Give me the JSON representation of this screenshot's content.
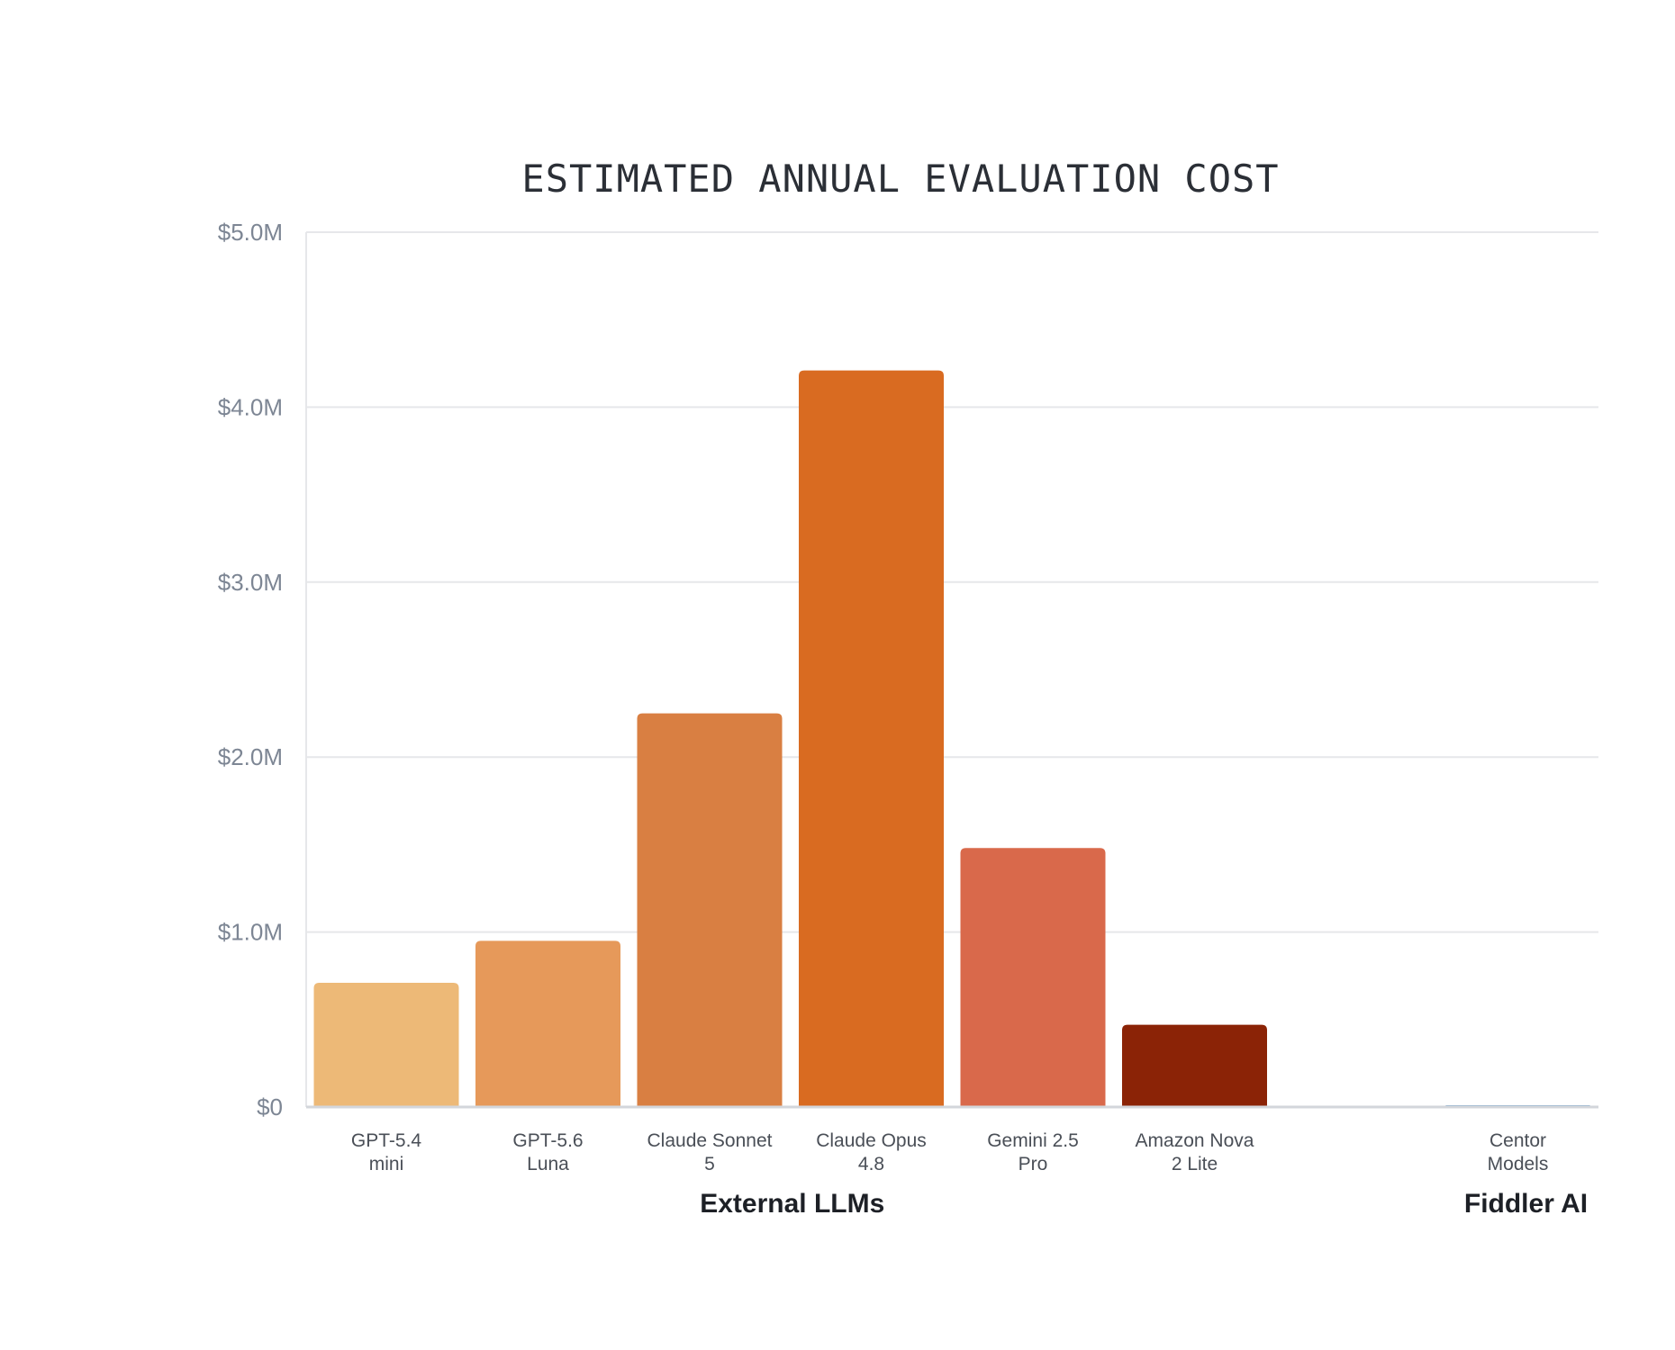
{
  "chart_data": {
    "type": "bar",
    "title": "ESTIMATED ANNUAL EVALUATION COST",
    "xlabel": "",
    "ylabel": "",
    "ylim": [
      0,
      5.0
    ],
    "y_unit": "M",
    "y_ticks": [
      {
        "value": 0,
        "label": "$0"
      },
      {
        "value": 1.0,
        "label": "$1.0M"
      },
      {
        "value": 2.0,
        "label": "$2.0M"
      },
      {
        "value": 3.0,
        "label": "$3.0M"
      },
      {
        "value": 4.0,
        "label": "$4.0M"
      },
      {
        "value": 5.0,
        "label": "$5.0M"
      }
    ],
    "grid": true,
    "categories": [
      "GPT-5.4 mini",
      "GPT-5.6 Luna",
      "Claude Sonnet 5",
      "Claude Opus 4.8",
      "Gemini 2.5 Pro",
      "Amazon Nova 2 Lite",
      "Centor Models"
    ],
    "category_lines": [
      [
        "GPT-5.4",
        "mini"
      ],
      [
        "GPT-5.6",
        "Luna"
      ],
      [
        "Claude Sonnet",
        "5"
      ],
      [
        "Claude Opus",
        "4.8"
      ],
      [
        "Gemini 2.5",
        "Pro"
      ],
      [
        "Amazon Nova",
        "2 Lite"
      ],
      [
        "Centor",
        "Models"
      ]
    ],
    "values": [
      0.71,
      0.95,
      2.25,
      4.21,
      1.48,
      0.47,
      0.01
    ],
    "colors": [
      "#edb977",
      "#e6995a",
      "#d97f42",
      "#d96b21",
      "#d9694b",
      "#8b2306",
      "#7ea8cc"
    ],
    "groups": [
      {
        "label": "External LLMs",
        "categories": [
          "GPT-5.4 mini",
          "GPT-5.6 Luna",
          "Claude Sonnet 5",
          "Claude Opus 4.8",
          "Gemini 2.5 Pro",
          "Amazon Nova 2 Lite"
        ]
      },
      {
        "label": "Fiddler AI",
        "categories": [
          "Centor Models"
        ]
      }
    ]
  }
}
